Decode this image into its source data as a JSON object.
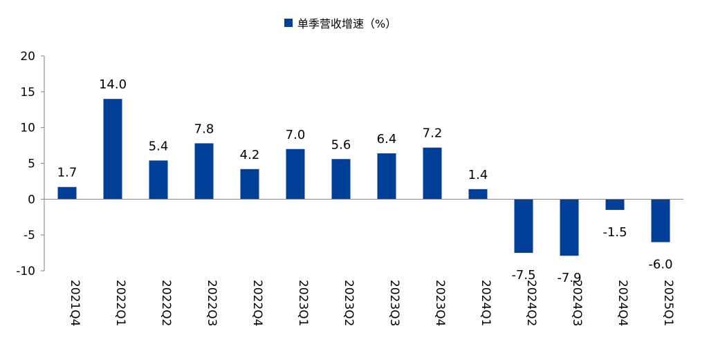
{
  "chart_data": {
    "type": "bar",
    "title": "",
    "xlabel": "",
    "ylabel": "",
    "categories": [
      "2021Q4",
      "2022Q1",
      "2022Q2",
      "2022Q3",
      "2022Q4",
      "2023Q1",
      "2023Q2",
      "2023Q3",
      "2023Q4",
      "2024Q1",
      "2024Q2",
      "2024Q3",
      "2024Q4",
      "2025Q1"
    ],
    "series": [
      {
        "name": "单季营收增速（%）",
        "values": [
          1.7,
          14.0,
          5.4,
          7.8,
          4.2,
          7.0,
          5.6,
          6.4,
          7.2,
          1.4,
          -7.5,
          -7.9,
          -1.5,
          -6.0
        ],
        "data_labels": [
          "1.7",
          "14.0",
          "5.4",
          "7.8",
          "4.2",
          "7.0",
          "5.6",
          "6.4",
          "7.2",
          "1.4",
          "-7.5",
          "-7.9",
          "-1.5",
          "-6.0"
        ],
        "color": "#003f98"
      }
    ],
    "ylim": [
      -10,
      20
    ],
    "yticks": [
      "20",
      "15",
      "10",
      "5",
      "0",
      "-5",
      "-10"
    ],
    "ytick_values": [
      20,
      15,
      10,
      5,
      0,
      -5,
      -10
    ],
    "legend": "top-center",
    "grid": false,
    "x_tick_rotation": "vertical"
  }
}
